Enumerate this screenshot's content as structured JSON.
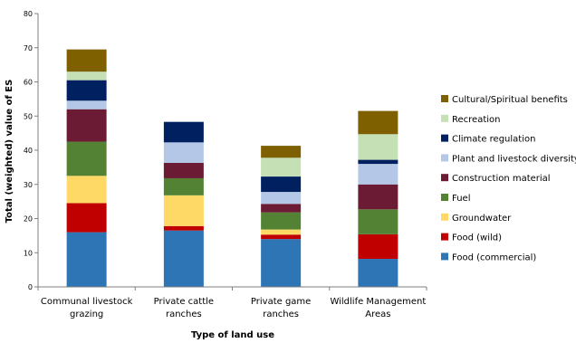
{
  "chart_data": {
    "type": "bar",
    "stacked": true,
    "xlabel": "Type of land use",
    "ylabel": "Total (weighted) value of ES",
    "ylim": [
      0,
      80
    ],
    "yticks": [
      0,
      10,
      20,
      30,
      40,
      50,
      60,
      70,
      80
    ],
    "grid": false,
    "legend_position": "right",
    "categories": [
      [
        "Communal livestock",
        "grazing"
      ],
      [
        "Private cattle",
        "ranches"
      ],
      [
        "Private game",
        "ranches"
      ],
      [
        "Wildlife Management",
        "Areas"
      ]
    ],
    "series": [
      {
        "name": "Food (commercial)",
        "color": "#2e75b6",
        "values": [
          16,
          16.5,
          14,
          8.2
        ]
      },
      {
        "name": "Food (wild)",
        "color": "#c00000",
        "values": [
          8.5,
          1.3,
          1.3,
          7.2
        ]
      },
      {
        "name": "Groundwater",
        "color": "#ffd966",
        "values": [
          8,
          9,
          1.5,
          0
        ]
      },
      {
        "name": "Fuel",
        "color": "#548235",
        "values": [
          10,
          5,
          5,
          7.3
        ]
      },
      {
        "name": "Construction material",
        "color": "#6b1b33",
        "values": [
          9.5,
          4.5,
          2.5,
          7.3
        ]
      },
      {
        "name": "Plant and livestock diversity",
        "color": "#b4c7e7",
        "values": [
          2.5,
          6,
          3.5,
          6
        ]
      },
      {
        "name": "Climate regulation",
        "color": "#002060",
        "values": [
          6,
          6,
          4.5,
          1.2
        ]
      },
      {
        "name": "Recreation",
        "color": "#c5e0b4",
        "values": [
          2.5,
          0,
          5.5,
          7.5
        ]
      },
      {
        "name": "Cultural/Spiritual benefits",
        "color": "#7f6000",
        "values": [
          6.5,
          0,
          3.5,
          6.8
        ]
      }
    ]
  }
}
